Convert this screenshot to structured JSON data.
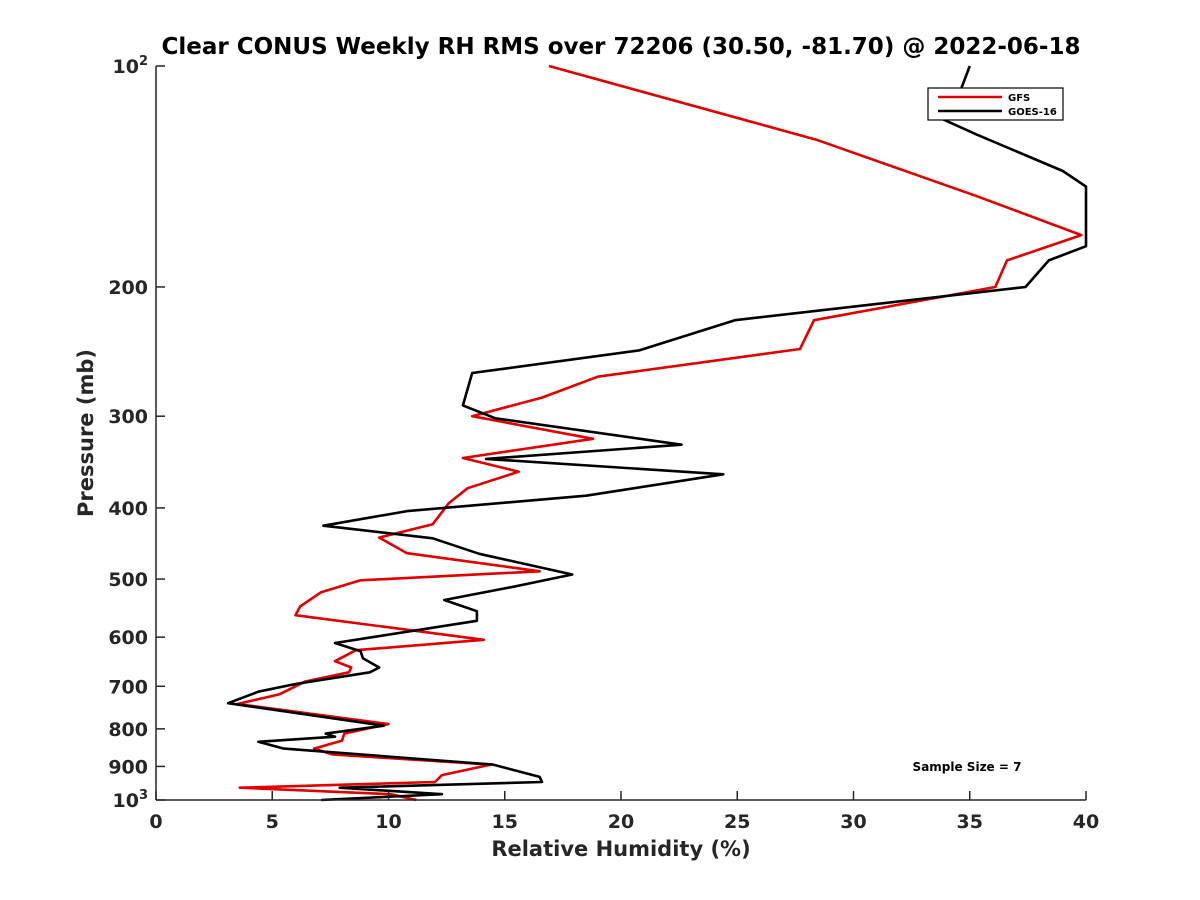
{
  "chart_data": {
    "type": "line",
    "title": "Clear CONUS Weekly RH RMS over 72206 (30.50, -81.70) @ 2022-06-18",
    "xlabel": "Relative Humidity (%)",
    "ylabel": "Pressure (mb)",
    "xlim": [
      0,
      40
    ],
    "ylim": [
      100,
      1000
    ],
    "yscale": "log",
    "y_reversed": true,
    "xticks": [
      0,
      5,
      10,
      15,
      20,
      25,
      30,
      35,
      40
    ],
    "yticks": [
      {
        "value": 100,
        "label": "10",
        "sup": "2"
      },
      {
        "value": 200,
        "label": "200"
      },
      {
        "value": 300,
        "label": "300"
      },
      {
        "value": 400,
        "label": "400"
      },
      {
        "value": 500,
        "label": "500"
      },
      {
        "value": 600,
        "label": "600"
      },
      {
        "value": 700,
        "label": "700"
      },
      {
        "value": 800,
        "label": "800"
      },
      {
        "value": 900,
        "label": "900"
      },
      {
        "value": 1000,
        "label": "10",
        "sup": "3"
      }
    ],
    "grid": false,
    "legend_position": "top-right",
    "annotation": "Sample Size = 7",
    "series": [
      {
        "name": "GFS",
        "color": "#e00000",
        "points": [
          [
            16.9,
            100
          ],
          [
            28.4,
            126
          ],
          [
            35.2,
            150
          ],
          [
            39.8,
            170
          ],
          [
            36.6,
            184
          ],
          [
            36.1,
            200
          ],
          [
            28.3,
            222
          ],
          [
            27.7,
            243
          ],
          [
            19.0,
            265
          ],
          [
            16.6,
            283
          ],
          [
            13.6,
            300
          ],
          [
            18.8,
            322
          ],
          [
            13.2,
            342
          ],
          [
            15.6,
            357
          ],
          [
            13.4,
            376
          ],
          [
            12.6,
            394
          ],
          [
            11.9,
            421
          ],
          [
            9.6,
            439
          ],
          [
            10.8,
            461
          ],
          [
            16.5,
            488
          ],
          [
            8.8,
            502
          ],
          [
            7.1,
            521
          ],
          [
            6.2,
            545
          ],
          [
            6.0,
            560
          ],
          [
            14.1,
            605
          ],
          [
            8.6,
            625
          ],
          [
            7.7,
            647
          ],
          [
            8.4,
            660
          ],
          [
            8.3,
            670
          ],
          [
            6.4,
            690
          ],
          [
            5.3,
            718
          ],
          [
            3.5,
            740
          ],
          [
            10.0,
            788
          ],
          [
            9.1,
            799
          ],
          [
            8.1,
            812
          ],
          [
            8.0,
            830
          ],
          [
            6.8,
            851
          ],
          [
            7.6,
            867
          ],
          [
            14.4,
            895
          ],
          [
            12.3,
            925
          ],
          [
            12.0,
            945
          ],
          [
            3.6,
            962
          ],
          [
            10.1,
            982
          ],
          [
            11.2,
            1000
          ]
        ]
      },
      {
        "name": "GOES-16",
        "color": "#000000",
        "points": [
          [
            35.0,
            100
          ],
          [
            34.6,
            108
          ],
          [
            33.8,
            118
          ],
          [
            35.3,
            124
          ],
          [
            39.0,
            139
          ],
          [
            40.0,
            146
          ],
          [
            40.0,
            176
          ],
          [
            38.4,
            184
          ],
          [
            37.4,
            200
          ],
          [
            24.9,
            222
          ],
          [
            20.8,
            244
          ],
          [
            13.6,
            262
          ],
          [
            13.2,
            290
          ],
          [
            14.6,
            302
          ],
          [
            22.6,
            328
          ],
          [
            14.2,
            343
          ],
          [
            24.4,
            360
          ],
          [
            18.5,
            385
          ],
          [
            10.8,
            404
          ],
          [
            7.2,
            423
          ],
          [
            11.9,
            440
          ],
          [
            13.9,
            462
          ],
          [
            17.9,
            493
          ],
          [
            15.4,
            512
          ],
          [
            12.4,
            534
          ],
          [
            13.8,
            553
          ],
          [
            13.8,
            570
          ],
          [
            7.7,
            611
          ],
          [
            8.8,
            627
          ],
          [
            8.9,
            641
          ],
          [
            9.6,
            660
          ],
          [
            9.2,
            670
          ],
          [
            6.0,
            695
          ],
          [
            4.4,
            712
          ],
          [
            3.1,
            738
          ],
          [
            9.8,
            792
          ],
          [
            7.3,
            812
          ],
          [
            7.7,
            820
          ],
          [
            4.4,
            833
          ],
          [
            5.5,
            851
          ],
          [
            14.5,
            895
          ],
          [
            16.5,
            930
          ],
          [
            16.6,
            945
          ],
          [
            7.9,
            962
          ],
          [
            12.3,
            982
          ],
          [
            7.1,
            1000
          ]
        ]
      }
    ]
  }
}
